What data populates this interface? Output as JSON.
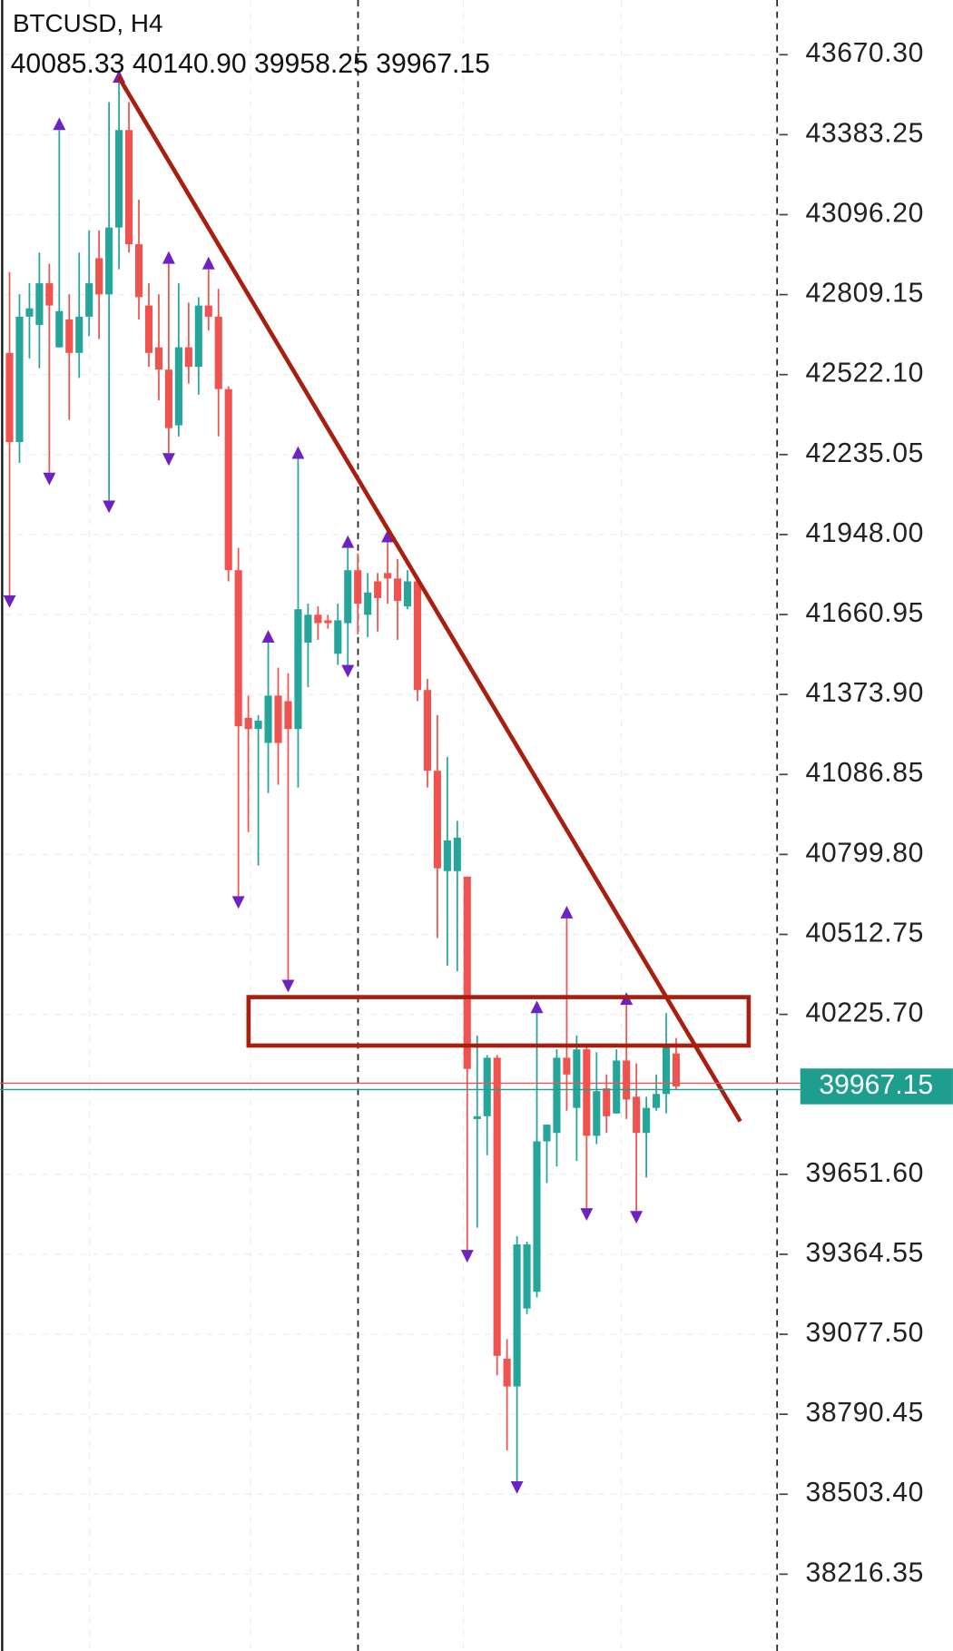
{
  "chart_data": {
    "type": "candlestick",
    "title": "BTCUSD, H4",
    "ohlc_labels": [
      "40085.33",
      "40140.90",
      "39958.25",
      "39967.15"
    ],
    "ylim": [
      37940.6,
      43866.7
    ],
    "yticks": [
      {
        "value": 43670.3,
        "label": "43670.30"
      },
      {
        "value": 43383.25,
        "label": "43383.25"
      },
      {
        "value": 43096.2,
        "label": "43096.20"
      },
      {
        "value": 42809.15,
        "label": "42809.15"
      },
      {
        "value": 42522.1,
        "label": "42522.10"
      },
      {
        "value": 42235.05,
        "label": "42235.05"
      },
      {
        "value": 41948.0,
        "label": "41948.00"
      },
      {
        "value": 41660.95,
        "label": "41660.95"
      },
      {
        "value": 41373.9,
        "label": "41373.90"
      },
      {
        "value": 41086.85,
        "label": "41086.85"
      },
      {
        "value": 40799.8,
        "label": "40799.80"
      },
      {
        "value": 40512.75,
        "label": "40512.75"
      },
      {
        "value": 40225.7,
        "label": "40225.70"
      },
      {
        "value": 39651.6,
        "label": "39651.60"
      },
      {
        "value": 39364.55,
        "label": "39364.55"
      },
      {
        "value": 39077.5,
        "label": "39077.50"
      },
      {
        "value": 38790.45,
        "label": "38790.45"
      },
      {
        "value": 38503.4,
        "label": "38503.40"
      },
      {
        "value": 38216.35,
        "label": "38216.35"
      }
    ],
    "grid": true,
    "up_color": "#26a69a",
    "down_color": "#ef5350",
    "open": [
      42600,
      42280,
      42730,
      42700,
      42850,
      42620,
      42720,
      42600,
      42730,
      42940,
      42810,
      43050,
      43400,
      42990,
      42770,
      42620,
      42540,
      42340,
      42620,
      42550,
      42770,
      42730,
      42470,
      41820,
      41290,
      41250,
      41200,
      41370,
      41350,
      41250,
      41560,
      41660,
      41640,
      41520,
      41630,
      41820,
      41660,
      41780,
      41810,
      41790,
      41690,
      41780,
      41390,
      41100,
      40740,
      40740,
      40720,
      39850,
      39860,
      40070,
      38990,
      38890,
      39170,
      39230,
      39770,
      39800,
      40070,
      39890,
      40100,
      39790,
      39960,
      39870,
      40060,
      39930,
      39800,
      39890,
      39940,
      40085.33
    ],
    "high": [
      42890,
      42810,
      42850,
      42960,
      42920,
      43400,
      42810,
      42960,
      43040,
      43040,
      43500,
      43570,
      43500,
      43150,
      42850,
      42810,
      42920,
      42850,
      42780,
      42800,
      42900,
      42830,
      42480,
      41900,
      41370,
      41300,
      41560,
      41470,
      41450,
      42220,
      41700,
      41690,
      41660,
      41700,
      41900,
      41880,
      41810,
      41810,
      41920,
      41860,
      41820,
      41800,
      41430,
      41300,
      41150,
      40920,
      40720,
      40150,
      40080,
      40080,
      39060,
      39430,
      39410,
      40230,
      39830,
      40100,
      40570,
      40150,
      40110,
      40090,
      40010,
      40100,
      40260,
      40050,
      39930,
      40010,
      40230,
      40140.9
    ],
    "low": [
      41730,
      42205,
      42580,
      42545,
      42170,
      42620,
      42360,
      42510,
      42660,
      42650,
      42070,
      42900,
      42960,
      42720,
      42550,
      42430,
      42240,
      42300,
      42490,
      42450,
      42680,
      42300,
      41780,
      40650,
      40880,
      40760,
      41020,
      41050,
      40350,
      41040,
      41400,
      41570,
      41610,
      41480,
      41480,
      41590,
      41580,
      41600,
      41700,
      41570,
      41680,
      41350,
      41040,
      40500,
      40400,
      40380,
      39380,
      39460,
      39720,
      38930,
      38660,
      38550,
      39150,
      39210,
      39620,
      39680,
      39880,
      39700,
      39530,
      39760,
      39800,
      39870,
      39850,
      39520,
      39640,
      39880,
      39870,
      39958.25
    ],
    "close": [
      42280,
      42730,
      42760,
      42850,
      42770,
      42750,
      42600,
      42730,
      42850,
      42810,
      43050,
      43400,
      42990,
      42800,
      42600,
      42540,
      42330,
      42620,
      42550,
      42770,
      42730,
      42470,
      41820,
      41260,
      41250,
      41280,
      41370,
      41200,
      41250,
      41680,
      41660,
      41630,
      41630,
      41640,
      41820,
      41700,
      41740,
      41720,
      41790,
      41710,
      41780,
      41390,
      41100,
      40750,
      40850,
      40860,
      40030,
      39860,
      40070,
      39000,
      38890,
      39400,
      39400,
      39770,
      39830,
      40070,
      40010,
      40100,
      39790,
      39950,
      39860,
      40060,
      39920,
      39800,
      39890,
      39940,
      40110,
      39967.15
    ],
    "fractals_color": "#6f22c4",
    "fractals_up": [
      null,
      null,
      null,
      null,
      null,
      43400,
      null,
      null,
      null,
      null,
      null,
      43570,
      null,
      null,
      null,
      null,
      42920,
      null,
      null,
      null,
      42900,
      null,
      null,
      null,
      null,
      null,
      41560,
      null,
      null,
      42220,
      null,
      null,
      null,
      null,
      41900,
      null,
      null,
      null,
      41920,
      null,
      null,
      null,
      null,
      null,
      null,
      null,
      null,
      null,
      null,
      null,
      null,
      null,
      null,
      40230,
      null,
      null,
      40570,
      null,
      null,
      null,
      null,
      null,
      40260,
      null,
      null,
      null,
      null,
      null
    ],
    "fractals_down": [
      41730,
      null,
      null,
      null,
      42170,
      null,
      null,
      null,
      null,
      null,
      42070,
      null,
      null,
      null,
      null,
      null,
      42240,
      null,
      null,
      null,
      null,
      null,
      null,
      40650,
      null,
      null,
      null,
      null,
      40350,
      null,
      null,
      null,
      null,
      null,
      41480,
      null,
      null,
      null,
      null,
      null,
      null,
      null,
      null,
      null,
      null,
      null,
      39380,
      null,
      null,
      null,
      null,
      38550,
      null,
      null,
      null,
      null,
      null,
      null,
      39530,
      null,
      null,
      null,
      null,
      39520,
      null,
      null,
      null,
      null
    ],
    "current_price": {
      "value": 39967.15,
      "label": "39967.15"
    },
    "current_price_color": "#1e9e8f"
  }
}
